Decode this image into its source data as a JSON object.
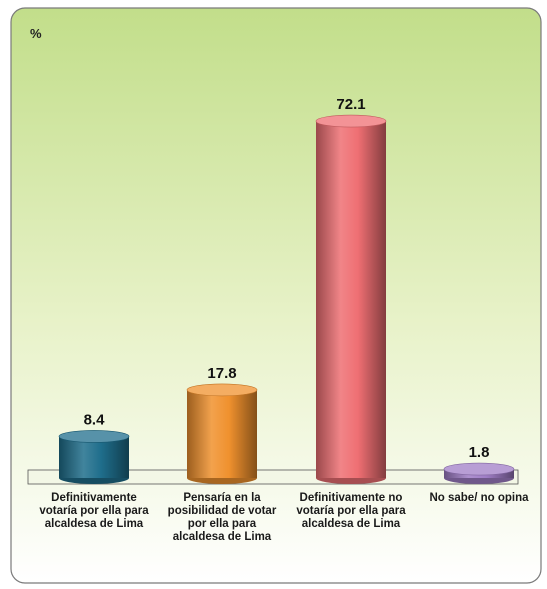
{
  "chart_data": {
    "type": "bar",
    "ylabel": "%",
    "ylim": [
      0,
      80
    ],
    "categories": [
      "Definitivamente votaría por ella para alcaldesa de Lima",
      "Pensaría en la posibilidad de votar por ella para alcaldesa de Lima",
      "Definitivamente no votaría por ella para alcaldesa de Lima",
      "No sabe/ no opina"
    ],
    "values": [
      8.4,
      17.8,
      72.1,
      1.8
    ],
    "value_labels": [
      "8.4",
      "17.8",
      "72.1",
      "1.8"
    ],
    "colors": [
      "#1f6e8c",
      "#f0912e",
      "#ef6f73",
      "#a07ec7"
    ],
    "background_gradient": [
      "#c2de8a",
      "#e8f2c9",
      "#ffffff"
    ],
    "grid": false,
    "legend": "none"
  }
}
